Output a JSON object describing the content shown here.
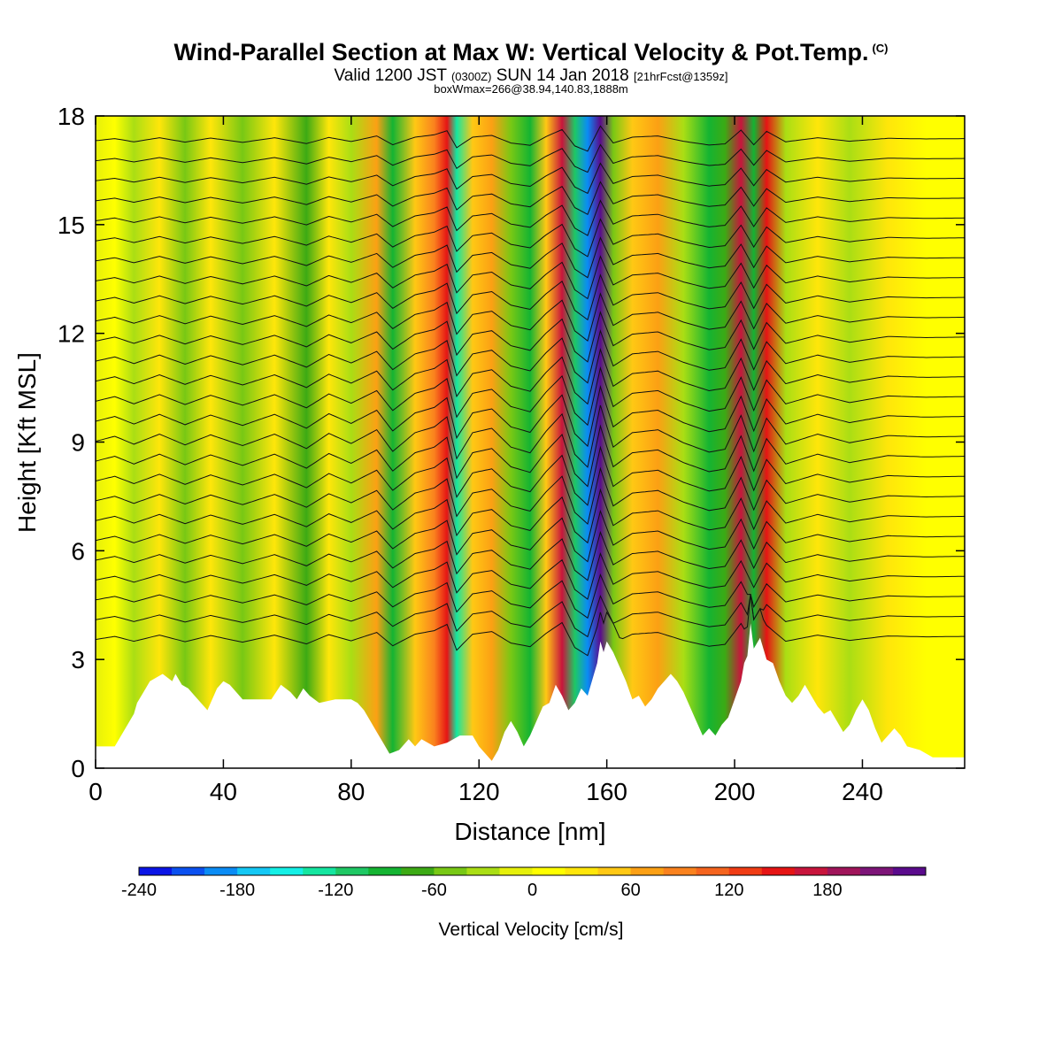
{
  "header": {
    "title_main": "Wind-Parallel Section at Max W: Vertical Velocity & Pot.Temp.",
    "title_tag": "(C)",
    "valid_a": "Valid 1200 JST ",
    "valid_b": "(0300Z)",
    "valid_c": " SUN 14 Jan 2018 ",
    "valid_d": "[21hrFcst@1359z]",
    "box_info": "boxWmax=266@38.94,140.83,1888m"
  },
  "chart_data": {
    "type": "heatmap",
    "xlabel": "Distance [nm]",
    "ylabel": "Height [Kft MSL]",
    "xlim": [
      0,
      272
    ],
    "ylim": [
      0,
      18
    ],
    "x_ticks": [
      0,
      40,
      80,
      120,
      160,
      200,
      240
    ],
    "y_ticks": [
      0,
      3,
      6,
      9,
      12,
      15,
      18
    ],
    "colorbar": {
      "label": "Vertical Velocity [cm/s]",
      "min": -240,
      "max": 240,
      "step": 20,
      "tick_values": [
        -240,
        -180,
        -120,
        -60,
        0,
        60,
        120,
        180
      ],
      "tick_labels": [
        "-240",
        "-180",
        "-120",
        "-60",
        "0",
        "60",
        "120",
        "180"
      ],
      "colors": [
        "#0a14e6",
        "#0a50f0",
        "#0a8cf5",
        "#14c8f5",
        "#14f0e6",
        "#14e6a0",
        "#1ec864",
        "#14b432",
        "#3caa14",
        "#78c814",
        "#aade14",
        "#e6f00a",
        "#ffff00",
        "#ffe60a",
        "#ffc814",
        "#fca014",
        "#fa821e",
        "#f5641e",
        "#f03c14",
        "#e61414",
        "#c8143c",
        "#a0145a",
        "#7d1478",
        "#5a0a8c"
      ]
    },
    "velocity_columns": [
      {
        "x": 0,
        "w": -20
      },
      {
        "x": 6,
        "w": 15
      },
      {
        "x": 12,
        "w": -40
      },
      {
        "x": 20,
        "w": 30
      },
      {
        "x": 28,
        "w": -45
      },
      {
        "x": 36,
        "w": 25
      },
      {
        "x": 46,
        "w": -50
      },
      {
        "x": 56,
        "w": 30
      },
      {
        "x": 66,
        "w": -70
      },
      {
        "x": 73,
        "w": 35
      },
      {
        "x": 80,
        "w": -35
      },
      {
        "x": 88,
        "w": 60
      },
      {
        "x": 93,
        "w": -90
      },
      {
        "x": 100,
        "w": 40
      },
      {
        "x": 106,
        "w": 80
      },
      {
        "x": 110,
        "w": 150
      },
      {
        "x": 113,
        "w": -140
      },
      {
        "x": 118,
        "w": 40
      },
      {
        "x": 124,
        "w": 70
      },
      {
        "x": 130,
        "w": -60
      },
      {
        "x": 136,
        "w": -100
      },
      {
        "x": 141,
        "w": 50
      },
      {
        "x": 146,
        "w": 170
      },
      {
        "x": 150,
        "w": -110
      },
      {
        "x": 154,
        "w": -200
      },
      {
        "x": 158,
        "w": 230
      },
      {
        "x": 162,
        "w": -60
      },
      {
        "x": 168,
        "w": 40
      },
      {
        "x": 176,
        "w": 60
      },
      {
        "x": 184,
        "w": -30
      },
      {
        "x": 192,
        "w": -95
      },
      {
        "x": 197,
        "w": -75
      },
      {
        "x": 202,
        "w": 160
      },
      {
        "x": 206,
        "w": -90
      },
      {
        "x": 210,
        "w": 140
      },
      {
        "x": 216,
        "w": -40
      },
      {
        "x": 226,
        "w": 30
      },
      {
        "x": 236,
        "w": -30
      },
      {
        "x": 248,
        "w": 20
      },
      {
        "x": 260,
        "w": 10
      },
      {
        "x": 272,
        "w": 15
      }
    ],
    "terrain": [
      [
        0,
        0.6
      ],
      [
        6,
        0.6
      ],
      [
        8,
        0.9
      ],
      [
        10,
        1.2
      ],
      [
        12,
        1.5
      ],
      [
        13,
        1.8
      ],
      [
        15,
        2.1
      ],
      [
        17,
        2.4
      ],
      [
        19,
        2.5
      ],
      [
        21,
        2.6
      ],
      [
        24,
        2.4
      ],
      [
        25,
        2.6
      ],
      [
        27,
        2.3
      ],
      [
        29,
        2.2
      ],
      [
        31,
        2.0
      ],
      [
        33,
        1.8
      ],
      [
        35,
        1.6
      ],
      [
        36,
        1.8
      ],
      [
        38,
        2.2
      ],
      [
        40,
        2.4
      ],
      [
        42,
        2.3
      ],
      [
        44,
        2.1
      ],
      [
        46,
        1.9
      ],
      [
        50,
        1.9
      ],
      [
        55,
        1.9
      ],
      [
        58,
        2.3
      ],
      [
        61,
        2.1
      ],
      [
        63,
        1.9
      ],
      [
        65,
        2.2
      ],
      [
        67,
        2.0
      ],
      [
        70,
        1.8
      ],
      [
        75,
        1.9
      ],
      [
        80,
        1.9
      ],
      [
        82,
        1.8
      ],
      [
        84,
        1.6
      ],
      [
        86,
        1.3
      ],
      [
        88,
        1.0
      ],
      [
        90,
        0.7
      ],
      [
        92,
        0.4
      ],
      [
        95,
        0.5
      ],
      [
        98,
        0.8
      ],
      [
        100,
        0.6
      ],
      [
        102,
        0.8
      ],
      [
        106,
        0.6
      ],
      [
        110,
        0.7
      ],
      [
        114,
        0.9
      ],
      [
        118,
        0.9
      ],
      [
        120,
        0.6
      ],
      [
        122,
        0.4
      ],
      [
        124,
        0.2
      ],
      [
        126,
        0.5
      ],
      [
        128,
        1.0
      ],
      [
        130,
        1.3
      ],
      [
        132,
        1.0
      ],
      [
        134,
        0.6
      ],
      [
        136,
        0.9
      ],
      [
        138,
        1.3
      ],
      [
        140,
        1.7
      ],
      [
        142,
        1.8
      ],
      [
        144,
        2.3
      ],
      [
        146,
        2.0
      ],
      [
        148,
        1.6
      ],
      [
        150,
        1.8
      ],
      [
        152,
        2.2
      ],
      [
        154,
        2.0
      ],
      [
        156,
        2.6
      ],
      [
        157,
        2.9
      ],
      [
        158,
        3.5
      ],
      [
        159,
        3.2
      ],
      [
        160,
        3.5
      ],
      [
        162,
        3.2
      ],
      [
        164,
        2.8
      ],
      [
        166,
        2.4
      ],
      [
        168,
        1.9
      ],
      [
        170,
        2.0
      ],
      [
        172,
        1.7
      ],
      [
        174,
        1.9
      ],
      [
        176,
        2.2
      ],
      [
        178,
        2.4
      ],
      [
        180,
        2.6
      ],
      [
        182,
        2.4
      ],
      [
        184,
        2.1
      ],
      [
        186,
        1.7
      ],
      [
        188,
        1.3
      ],
      [
        190,
        0.9
      ],
      [
        192,
        1.1
      ],
      [
        194,
        0.9
      ],
      [
        196,
        1.2
      ],
      [
        198,
        1.4
      ],
      [
        200,
        1.9
      ],
      [
        202,
        2.4
      ],
      [
        203,
        2.9
      ],
      [
        204,
        3.1
      ],
      [
        205,
        4.0
      ],
      [
        206,
        3.3
      ],
      [
        208,
        3.6
      ],
      [
        210,
        3.0
      ],
      [
        212,
        2.9
      ],
      [
        214,
        2.4
      ],
      [
        216,
        2.0
      ],
      [
        218,
        1.8
      ],
      [
        220,
        2.0
      ],
      [
        222,
        2.3
      ],
      [
        224,
        2.0
      ],
      [
        226,
        1.7
      ],
      [
        228,
        1.5
      ],
      [
        230,
        1.6
      ],
      [
        232,
        1.3
      ],
      [
        234,
        1.0
      ],
      [
        236,
        1.2
      ],
      [
        238,
        1.6
      ],
      [
        240,
        1.9
      ],
      [
        242,
        1.6
      ],
      [
        244,
        1.1
      ],
      [
        246,
        0.7
      ],
      [
        248,
        0.9
      ],
      [
        250,
        1.1
      ],
      [
        252,
        0.9
      ],
      [
        254,
        0.6
      ],
      [
        258,
        0.5
      ],
      [
        262,
        0.3
      ],
      [
        272,
        0.3
      ]
    ]
  }
}
